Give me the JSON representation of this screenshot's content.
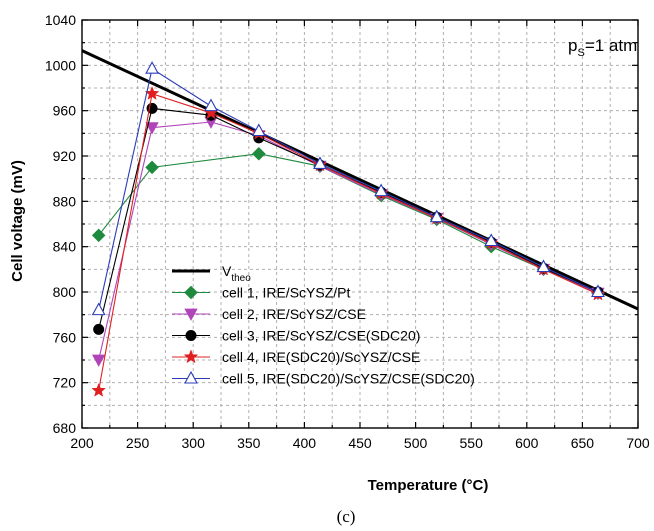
{
  "chart_data": {
    "type": "line",
    "title": "",
    "xlabel": "Temperature (°C)",
    "ylabel": "Cell voltage (mV)",
    "xlim": [
      200,
      700
    ],
    "ylim": [
      680,
      1040
    ],
    "x_ticks": [
      200,
      250,
      300,
      350,
      400,
      450,
      500,
      550,
      600,
      650,
      700
    ],
    "y_ticks": [
      680,
      720,
      760,
      800,
      840,
      880,
      920,
      960,
      1000,
      1040
    ],
    "grid": true,
    "legend_position": "bottom-left",
    "annotation": {
      "main": "p",
      "sub": "S",
      "rest": "=1 atm"
    },
    "caption": "(c)",
    "theory_line": {
      "name_main": "V",
      "name_sub": "theo",
      "color": "#000000",
      "x": [
        200,
        700
      ],
      "y": [
        1013,
        785
      ]
    },
    "series": [
      {
        "name": "cell 1, IRE/ScYSZ/Pt",
        "color": "#1e8a3e",
        "marker": "diamond",
        "x": [
          215,
          263,
          359,
          414,
          469,
          519,
          568,
          615,
          664
        ],
        "y": [
          850,
          910,
          922,
          911,
          885,
          864,
          840,
          820,
          799
        ]
      },
      {
        "name": "cell 2, IRE/ScYSZ/CSE",
        "color": "#b044b8",
        "marker": "triangle-down",
        "x": [
          215,
          263,
          316,
          359,
          414,
          469,
          519,
          568,
          615,
          664
        ],
        "y": [
          740,
          945,
          950,
          938,
          911,
          886,
          865,
          842,
          820,
          799
        ]
      },
      {
        "name": "cell 3, IRE/ScYSZ/CSE(SDC20)",
        "color": "#000000",
        "marker": "circle",
        "x": [
          215,
          263,
          316,
          359,
          414,
          469,
          519,
          568,
          615,
          664
        ],
        "y": [
          767,
          962,
          956,
          936,
          912,
          888,
          866,
          844,
          821,
          800
        ]
      },
      {
        "name": "cell 4, IRE(SDC20)/ScYSZ/CSE",
        "color": "#e02020",
        "marker": "star",
        "x": [
          215,
          263,
          316,
          359,
          414,
          469,
          519,
          568,
          615,
          664
        ],
        "y": [
          713,
          975,
          958,
          940,
          912,
          887,
          865,
          843,
          820,
          798
        ]
      },
      {
        "name": "cell 5, IRE(SDC20)/ScYSZ/CSE(SDC20)",
        "color": "#2b3cb8",
        "marker": "triangle-up-open",
        "x": [
          215,
          263,
          316,
          359,
          414,
          469,
          519,
          568,
          615,
          664
        ],
        "y": [
          784,
          997,
          964,
          942,
          913,
          889,
          866,
          845,
          822,
          800
        ]
      }
    ]
  }
}
